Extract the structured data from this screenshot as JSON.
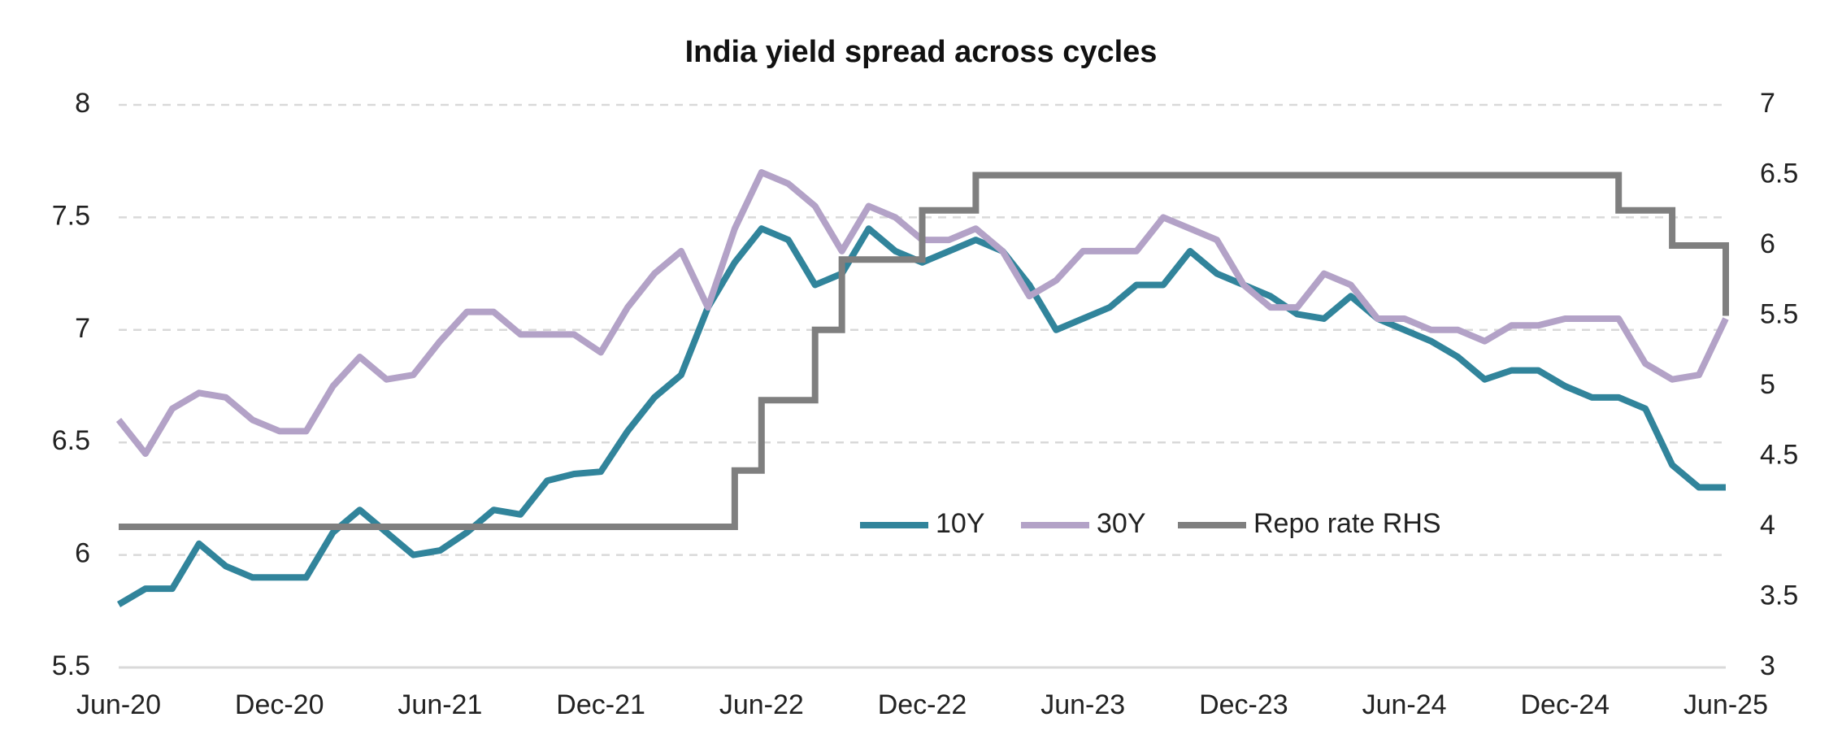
{
  "chart_data": {
    "type": "line",
    "title": "India yield spread across cycles",
    "x": [
      "2020-06",
      "2020-07",
      "2020-08",
      "2020-09",
      "2020-10",
      "2020-11",
      "2020-12",
      "2021-01",
      "2021-02",
      "2021-03",
      "2021-04",
      "2021-05",
      "2021-06",
      "2021-07",
      "2021-08",
      "2021-09",
      "2021-10",
      "2021-11",
      "2021-12",
      "2022-01",
      "2022-02",
      "2022-03",
      "2022-04",
      "2022-05",
      "2022-06",
      "2022-07",
      "2022-08",
      "2022-09",
      "2022-10",
      "2022-11",
      "2022-12",
      "2023-01",
      "2023-02",
      "2023-03",
      "2023-04",
      "2023-05",
      "2023-06",
      "2023-07",
      "2023-08",
      "2023-09",
      "2023-10",
      "2023-11",
      "2023-12",
      "2024-01",
      "2024-02",
      "2024-03",
      "2024-04",
      "2024-05",
      "2024-06",
      "2024-07",
      "2024-08",
      "2024-09",
      "2024-10",
      "2024-11",
      "2024-12",
      "2025-01",
      "2025-02",
      "2025-03",
      "2025-04",
      "2025-05",
      "2025-06"
    ],
    "series": [
      {
        "name": "10Y",
        "color": "#31849b",
        "values": [
          5.78,
          5.85,
          5.85,
          6.05,
          5.95,
          5.9,
          5.9,
          5.9,
          6.1,
          6.2,
          6.1,
          6.0,
          6.02,
          6.1,
          6.2,
          6.18,
          6.33,
          6.36,
          6.37,
          6.55,
          6.7,
          6.8,
          7.1,
          7.3,
          7.45,
          7.4,
          7.2,
          7.25,
          7.45,
          7.35,
          7.3,
          7.35,
          7.4,
          7.35,
          7.2,
          7.0,
          7.05,
          7.1,
          7.2,
          7.2,
          7.35,
          7.25,
          7.2,
          7.15,
          7.07,
          7.05,
          7.15,
          7.05,
          7.0,
          6.95,
          6.88,
          6.78,
          6.82,
          6.82,
          6.75,
          6.7,
          6.7,
          6.65,
          6.4,
          6.3,
          6.3
        ]
      },
      {
        "name": "30Y",
        "color": "#b3a2c7",
        "values": [
          6.6,
          6.45,
          6.65,
          6.72,
          6.7,
          6.6,
          6.55,
          6.55,
          6.75,
          6.88,
          6.78,
          6.8,
          6.95,
          7.08,
          7.08,
          6.98,
          6.98,
          6.98,
          6.9,
          7.1,
          7.25,
          7.35,
          7.1,
          7.45,
          7.7,
          7.65,
          7.55,
          7.35,
          7.55,
          7.5,
          7.4,
          7.4,
          7.45,
          7.35,
          7.15,
          7.22,
          7.35,
          7.35,
          7.35,
          7.5,
          7.45,
          7.4,
          7.2,
          7.1,
          7.1,
          7.25,
          7.2,
          7.05,
          7.05,
          7.0,
          7.0,
          6.95,
          7.02,
          7.02,
          7.05,
          7.05,
          7.05,
          6.85,
          6.78,
          6.8,
          7.05
        ]
      },
      {
        "name": "Repo rate RHS",
        "color": "#7f7f7f",
        "axis": "y2",
        "step": true,
        "values": [
          4,
          4,
          4,
          4,
          4,
          4,
          4,
          4,
          4,
          4,
          4,
          4,
          4,
          4,
          4,
          4,
          4,
          4,
          4,
          4,
          4,
          4,
          4,
          4.4,
          4.9,
          4.9,
          5.4,
          5.9,
          5.9,
          5.9,
          6.25,
          6.25,
          6.5,
          6.5,
          6.5,
          6.5,
          6.5,
          6.5,
          6.5,
          6.5,
          6.5,
          6.5,
          6.5,
          6.5,
          6.5,
          6.5,
          6.5,
          6.5,
          6.5,
          6.5,
          6.5,
          6.5,
          6.5,
          6.5,
          6.5,
          6.5,
          6.25,
          6.25,
          6.0,
          6.0,
          5.5
        ]
      }
    ],
    "xlim": [
      "2020-06",
      "2025-06"
    ],
    "xticks": [
      {
        "value": "2020-06",
        "label": "Jun-20"
      },
      {
        "value": "2020-12",
        "label": "Dec-20"
      },
      {
        "value": "2021-06",
        "label": "Jun-21"
      },
      {
        "value": "2021-12",
        "label": "Dec-21"
      },
      {
        "value": "2022-06",
        "label": "Jun-22"
      },
      {
        "value": "2022-12",
        "label": "Dec-22"
      },
      {
        "value": "2023-06",
        "label": "Jun-23"
      },
      {
        "value": "2023-12",
        "label": "Dec-23"
      },
      {
        "value": "2024-06",
        "label": "Jun-24"
      },
      {
        "value": "2024-12",
        "label": "Dec-24"
      },
      {
        "value": "2025-06",
        "label": "Jun-25"
      }
    ],
    "ylim": [
      5.5,
      8
    ],
    "yticks": [
      5.5,
      6,
      6.5,
      7,
      7.5,
      8
    ],
    "y2lim": [
      3,
      7
    ],
    "y2ticks": [
      3,
      3.5,
      4,
      4.5,
      5,
      5.5,
      6,
      6.5,
      7
    ],
    "grid": true,
    "legend": "center"
  }
}
